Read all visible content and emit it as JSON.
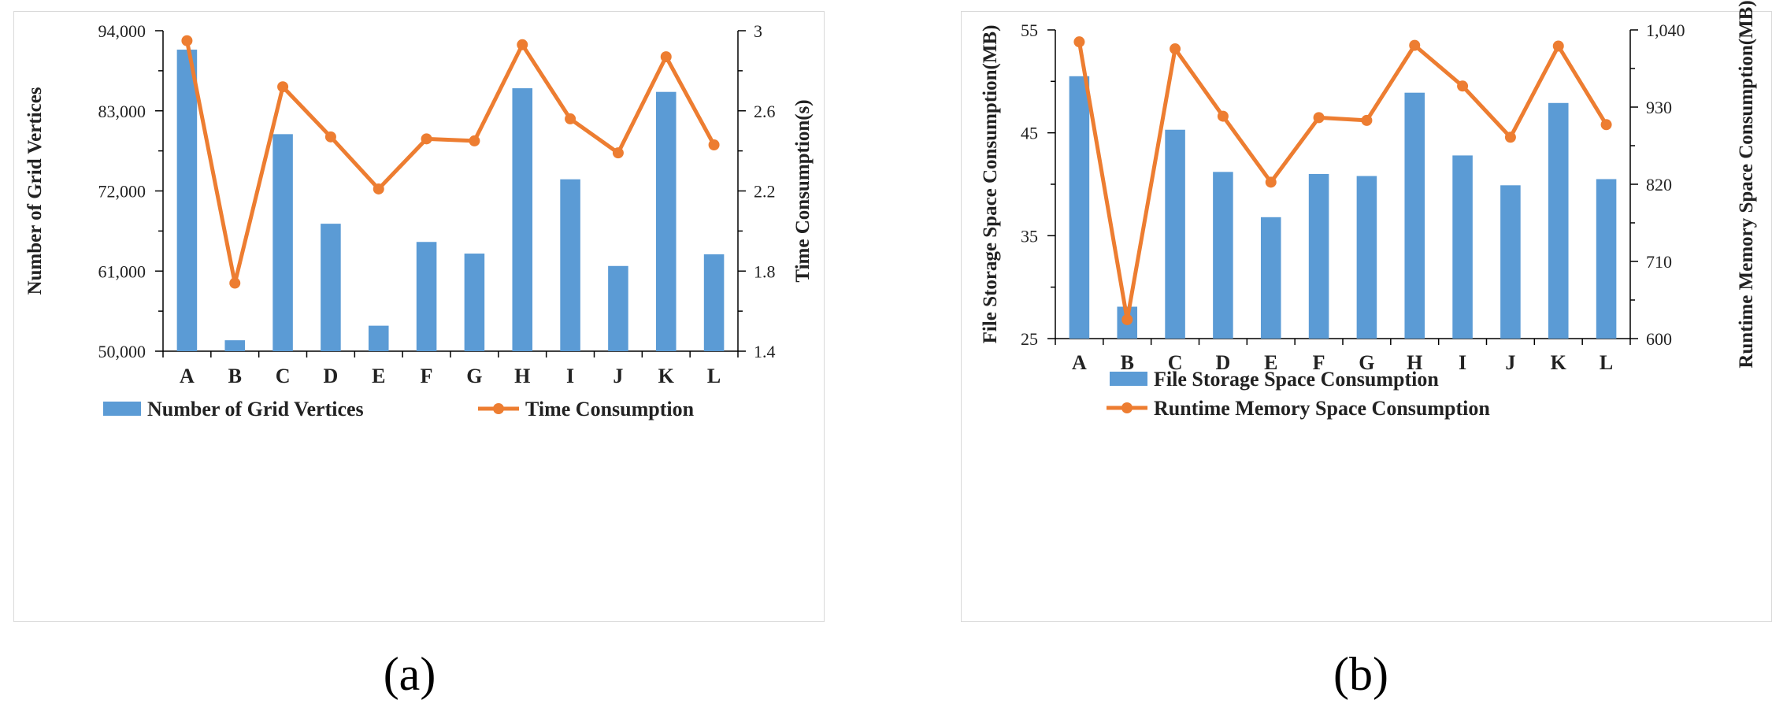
{
  "colors": {
    "bar": "#5b9bd5",
    "line": "#ed7d31",
    "axis": "#000000"
  },
  "panels": {
    "a_label": "(a)",
    "b_label": "(b)"
  },
  "chart_data": [
    {
      "id": "a",
      "type": "bar+line",
      "categories": [
        "A",
        "B",
        "C",
        "D",
        "E",
        "F",
        "G",
        "H",
        "I",
        "J",
        "K",
        "L"
      ],
      "series": [
        {
          "name": "Number of Grid Vertices",
          "type": "bar",
          "axis": "left",
          "values": [
            91400,
            51500,
            79800,
            67500,
            53500,
            65000,
            63400,
            86100,
            73600,
            61700,
            85600,
            63300
          ]
        },
        {
          "name": "Time Consumption",
          "type": "line",
          "axis": "right",
          "values": [
            2.95,
            1.74,
            2.72,
            2.47,
            2.21,
            2.46,
            2.45,
            2.93,
            2.56,
            2.39,
            2.87,
            2.43
          ]
        }
      ],
      "ylabel_left": "Number of Grid Vertices",
      "ylabel_right": "Time Consumption(s)",
      "ylim_left": [
        50000,
        94000
      ],
      "ylim_right": [
        1.4,
        3.0
      ],
      "yticks_left": [
        "94,000",
        "83,000",
        "72,000",
        "61,000",
        "50,000"
      ],
      "yticks_right": [
        "3",
        "2.6",
        "2.2",
        "1.8",
        "1.4"
      ],
      "legend": "bottom",
      "legend_labels": [
        "Number of Grid Vertices",
        "Time Consumption"
      ]
    },
    {
      "id": "b",
      "type": "bar+line",
      "categories": [
        "A",
        "B",
        "C",
        "D",
        "E",
        "F",
        "G",
        "H",
        "I",
        "J",
        "K",
        "L"
      ],
      "series": [
        {
          "name": "File Storage Space Consumption",
          "type": "bar",
          "axis": "left",
          "values": [
            50.5,
            28.1,
            45.3,
            41.2,
            36.8,
            41.0,
            40.8,
            48.9,
            42.8,
            39.9,
            47.9,
            40.5
          ]
        },
        {
          "name": "Runtime Memory Space Consumption",
          "type": "line",
          "axis": "right",
          "values": [
            1023,
            627,
            1013,
            917,
            823,
            915,
            911,
            1018,
            960,
            887,
            1017,
            905
          ]
        }
      ],
      "ylabel_left": "File Storage Space Consumption(MB)",
      "ylabel_right": "Runtime Memory Space Consumption(MB)",
      "ylim_left": [
        25,
        55
      ],
      "ylim_right": [
        600,
        1040
      ],
      "yticks_left": [
        "55",
        "45",
        "35",
        "25"
      ],
      "yticks_right": [
        "1,040",
        "930",
        "820",
        "710",
        "600"
      ],
      "legend": "bottom",
      "legend_labels": [
        "File Storage Space Consumption",
        "Runtime Memory Space Consumption"
      ]
    }
  ]
}
